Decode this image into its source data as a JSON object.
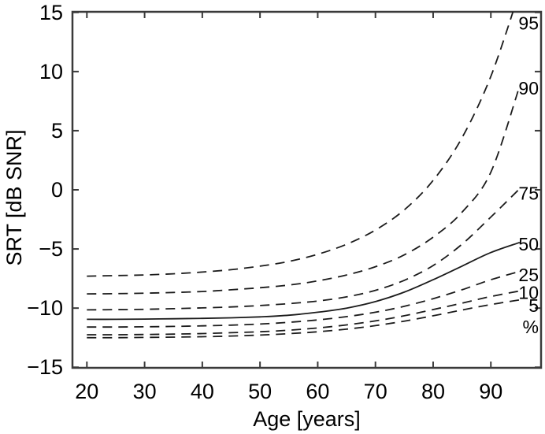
{
  "figure": {
    "background": "#ffffff",
    "text_color": "#000000",
    "curve_color": "#1b1b1b",
    "frame_color": "#3a3a3a"
  },
  "chart_data": {
    "type": "line",
    "title": "",
    "xlabel": "Age [years]",
    "ylabel": "SRT [dB SNR]",
    "xlim": [
      17.5,
      98.7
    ],
    "ylim": [
      -15.05,
      15.05
    ],
    "xticks": [
      20,
      30,
      40,
      50,
      60,
      70,
      80,
      90
    ],
    "yticks": [
      -15,
      -10,
      -5,
      0,
      5,
      10,
      15
    ],
    "grid": false,
    "legend_position": "inline-right",
    "ages": [
      20,
      25,
      30,
      35,
      40,
      45,
      50,
      55,
      60,
      65,
      70,
      75,
      80,
      85,
      90,
      95
    ],
    "series": [
      {
        "name": "95",
        "percentile": 95,
        "style": "dashed",
        "values": [
          -7.3,
          -7.25,
          -7.2,
          -7.1,
          -6.95,
          -6.75,
          -6.45,
          -6.05,
          -5.45,
          -4.6,
          -3.4,
          -1.7,
          0.8,
          4.4,
          9.6,
          16.8
        ]
      },
      {
        "name": "90",
        "percentile": 90,
        "style": "dashed",
        "values": [
          -8.8,
          -8.78,
          -8.74,
          -8.68,
          -8.6,
          -8.45,
          -8.28,
          -8.05,
          -7.7,
          -7.2,
          -6.5,
          -5.5,
          -4.0,
          -1.9,
          1.5,
          8.8
        ]
      },
      {
        "name": "75",
        "percentile": 75,
        "style": "dashed",
        "values": [
          -10.15,
          -10.13,
          -10.1,
          -10.05,
          -9.98,
          -9.9,
          -9.78,
          -9.62,
          -9.4,
          -9.05,
          -8.5,
          -7.65,
          -6.4,
          -4.6,
          -2.3,
          0.1
        ]
      },
      {
        "name": "50",
        "percentile": 50,
        "style": "solid",
        "values": [
          -10.95,
          -10.95,
          -10.93,
          -10.9,
          -10.87,
          -10.82,
          -10.74,
          -10.6,
          -10.35,
          -10.0,
          -9.45,
          -8.65,
          -7.6,
          -6.45,
          -5.3,
          -4.45
        ]
      },
      {
        "name": "25",
        "percentile": 25,
        "style": "dashed",
        "values": [
          -11.6,
          -11.6,
          -11.58,
          -11.55,
          -11.5,
          -11.44,
          -11.35,
          -11.2,
          -11.0,
          -10.72,
          -10.35,
          -9.85,
          -9.2,
          -8.45,
          -7.6,
          -6.9
        ]
      },
      {
        "name": "10",
        "percentile": 10,
        "style": "dashed",
        "values": [
          -12.25,
          -12.25,
          -12.23,
          -12.2,
          -12.15,
          -12.08,
          -12.0,
          -11.87,
          -11.68,
          -11.42,
          -11.08,
          -10.65,
          -10.12,
          -9.58,
          -9.02,
          -8.55
        ]
      },
      {
        "name": "5",
        "percentile": 5,
        "style": "dashed",
        "values": [
          -12.5,
          -12.5,
          -12.48,
          -12.45,
          -12.42,
          -12.36,
          -12.28,
          -12.16,
          -12.0,
          -11.78,
          -11.48,
          -11.1,
          -10.65,
          -10.16,
          -9.7,
          -9.3
        ]
      }
    ],
    "right_labels": [
      {
        "text": "95",
        "y": 14.1
      },
      {
        "text": "90",
        "y": 8.6
      },
      {
        "text": "75",
        "y": -0.3
      },
      {
        "text": "50",
        "y": -4.6
      },
      {
        "text": "25",
        "y": -7.2
      },
      {
        "text": "10",
        "y": -8.7
      },
      {
        "text": "5",
        "y": -9.8
      },
      {
        "text": "%",
        "y": -11.6
      }
    ]
  }
}
